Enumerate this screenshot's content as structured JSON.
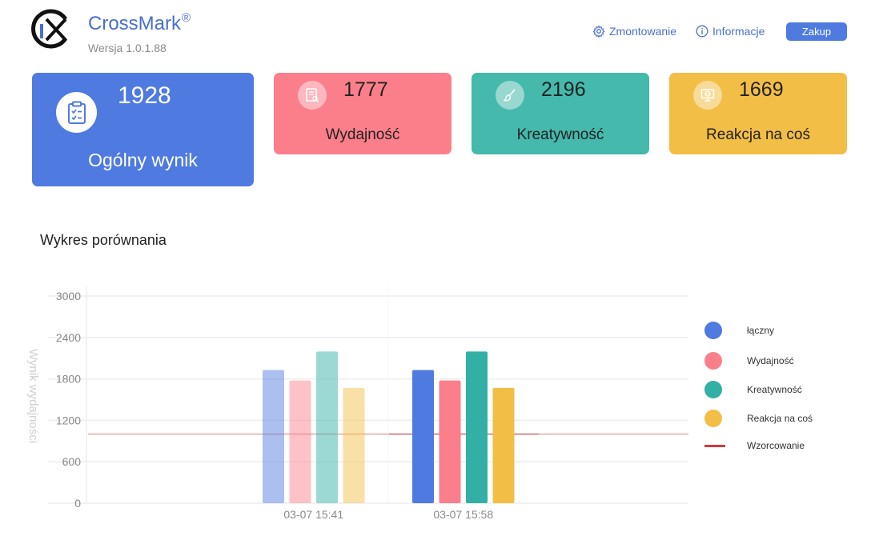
{
  "app": {
    "name": "CrossMark",
    "trademark": "®",
    "version": "Wersja 1.0.1.88"
  },
  "nav": {
    "mount_label": "Zmontowanie",
    "info_label": "Informacje",
    "buy_label": "Zakup"
  },
  "cards": {
    "overall": {
      "score": "1928",
      "label": "Ogólny wynik",
      "color": "#4f7be0",
      "icon": "clipboard-check-icon"
    },
    "performance": {
      "score": "1777",
      "label": "Wydajność",
      "color": "#fb7f8a",
      "icon": "document-search-icon"
    },
    "creativity": {
      "score": "2196",
      "label": "Kreatywność",
      "color": "#44b9ac",
      "icon": "brush-icon"
    },
    "reaction": {
      "score": "1669",
      "label": "Reakcja na coś",
      "color": "#f3be45",
      "icon": "monitor-globe-icon"
    }
  },
  "chart_title": "Wykres porównania",
  "chart_data": {
    "type": "bar",
    "ylabel": "Wynik wydajności",
    "ylim": [
      0,
      3000
    ],
    "yticks": [
      0,
      600,
      1200,
      1800,
      2400,
      3000
    ],
    "categories": [
      "03-07 15:41",
      "03-07 15:58"
    ],
    "series": [
      {
        "name": "łączny",
        "color": "#4f7be0",
        "values": [
          1928,
          1928
        ]
      },
      {
        "name": "Wydajność",
        "color": "#fb7f8a",
        "values": [
          1777,
          1777
        ]
      },
      {
        "name": "Kreatywność",
        "color": "#33b0a6",
        "values": [
          2196,
          2196
        ]
      },
      {
        "name": "Reakcja na coś",
        "color": "#f3be45",
        "values": [
          1669,
          1669
        ]
      }
    ],
    "faded_categories": [
      0
    ],
    "reference_line": {
      "name": "Wzorcowanie",
      "value": 1000,
      "color": "#d33a3a"
    },
    "grid": true,
    "legend_position": "right"
  }
}
